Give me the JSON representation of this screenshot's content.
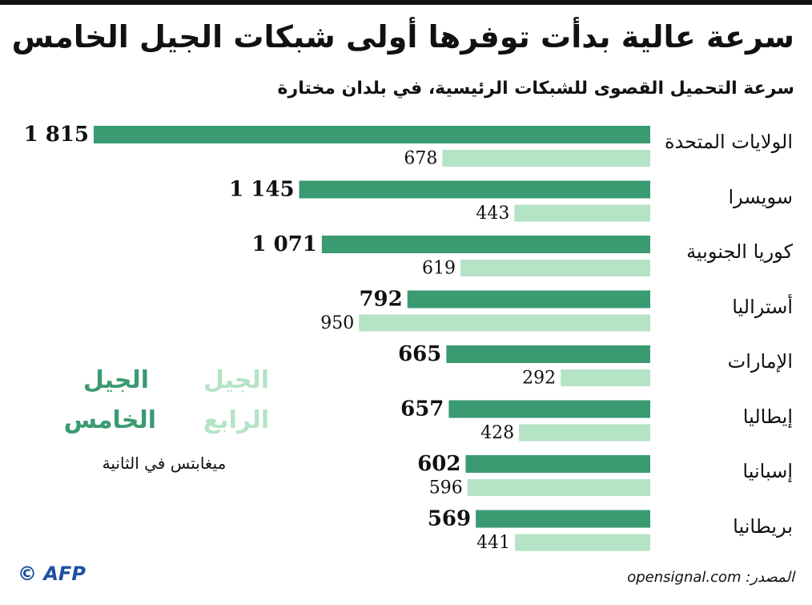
{
  "chart_data": {
    "type": "bar",
    "title": "سرعة عالية بدأت توفرها أولى شبكات الجيل الخامس",
    "subtitle": "سرعة التحميل القصوى للشبكات الرئيسية، في بلدان مختارة",
    "categories": [
      "الولايات المتحدة",
      "سويسرا",
      "كوريا الجنوبية",
      "أستراليا",
      "الإمارات",
      "إيطاليا",
      "إسبانيا",
      "بريطانيا"
    ],
    "series": [
      {
        "name": "الجيل الخامس",
        "color": "#3a9a72",
        "values": [
          1815,
          1145,
          1071,
          792,
          665,
          657,
          602,
          569
        ],
        "value_labels": [
          "1 815",
          "1 145",
          "1 071",
          "792",
          "665",
          "657",
          "602",
          "569"
        ]
      },
      {
        "name": "الجيل الرابع",
        "color": "#b5e3c5",
        "values": [
          678,
          443,
          619,
          950,
          292,
          428,
          596,
          441
        ]
      }
    ],
    "unit": "ميغابتس في الثانية",
    "source": "المصدر: opensignal.com",
    "credit": "© AFP"
  }
}
